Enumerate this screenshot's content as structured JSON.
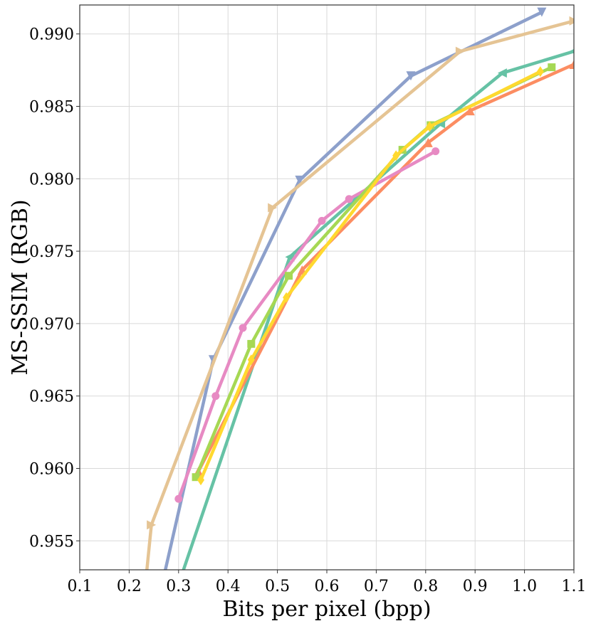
{
  "chart_data": {
    "type": "line",
    "xlabel": "Bits per pixel (bpp)",
    "ylabel": "MS-SSIM (RGB)",
    "xlim": [
      0.1,
      1.1
    ],
    "ylim": [
      0.953,
      0.992
    ],
    "xticks": [
      "0.1",
      "0.2",
      "0.3",
      "0.4",
      "0.5",
      "0.6",
      "0.7",
      "0.8",
      "0.9",
      "1.0",
      "1.1"
    ],
    "yticks": [
      "0.955",
      "0.960",
      "0.965",
      "0.970",
      "0.975",
      "0.980",
      "0.985",
      "0.990"
    ],
    "grid": true,
    "legend": "none",
    "series": [
      {
        "color": "#66c2a5",
        "marker": "triangle-left",
        "x": [
          0.29,
          0.525,
          0.83,
          0.955,
          1.1
        ],
        "y": [
          0.951,
          0.9746,
          0.9838,
          0.9873,
          0.9888
        ]
      },
      {
        "color": "#fc8d62",
        "marker": "triangle-up",
        "x": [
          0.34,
          0.55,
          0.805,
          0.89,
          1.1
        ],
        "y": [
          0.9598,
          0.9737,
          0.9825,
          0.9847,
          0.9879
        ]
      },
      {
        "color": "#8da0cb",
        "marker": "triangle-down",
        "x": [
          0.26,
          0.37,
          0.545,
          0.77,
          1.035
        ],
        "y": [
          0.951,
          0.9675,
          0.9799,
          0.9871,
          0.9915
        ]
      },
      {
        "color": "#e78ac3",
        "marker": "circle",
        "x": [
          0.3,
          0.375,
          0.43,
          0.59,
          0.645,
          0.82
        ],
        "y": [
          0.9579,
          0.965,
          0.9697,
          0.9771,
          0.9786,
          0.9819
        ]
      },
      {
        "color": "#a6d854",
        "marker": "square",
        "x": [
          0.335,
          0.447,
          0.523,
          0.753,
          0.81,
          1.055
        ],
        "y": [
          0.9594,
          0.9686,
          0.9733,
          0.982,
          0.9837,
          0.9877
        ]
      },
      {
        "color": "#ffd92f",
        "marker": "diamond",
        "x": [
          0.345,
          0.447,
          0.518,
          0.74,
          0.808,
          1.032
        ],
        "y": [
          0.9592,
          0.9675,
          0.9718,
          0.9816,
          0.9836,
          0.9874
        ]
      },
      {
        "color": "#e5c494",
        "marker": "triangle-right",
        "x": [
          0.23,
          0.245,
          0.49,
          0.87,
          1.1
        ],
        "y": [
          0.951,
          0.9561,
          0.978,
          0.9888,
          0.9909
        ]
      }
    ]
  }
}
